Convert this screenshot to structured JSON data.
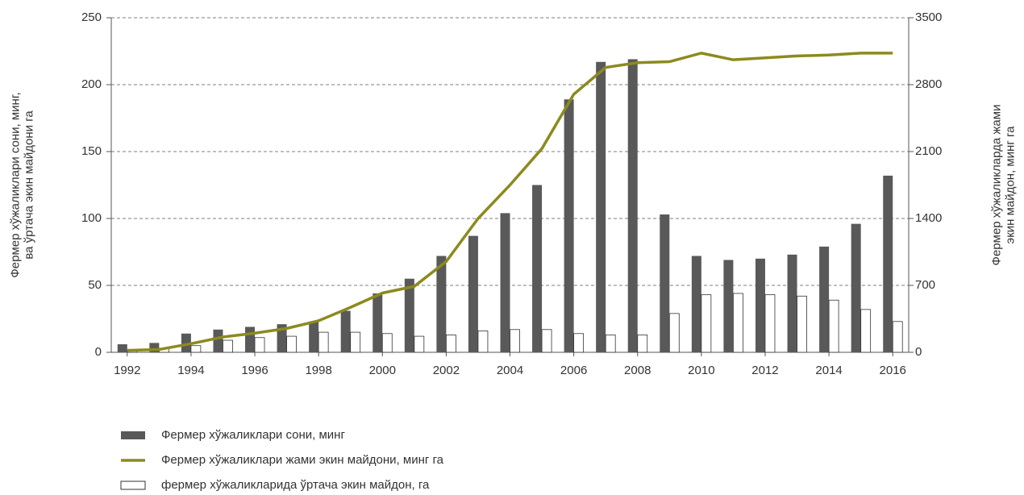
{
  "chart_data": {
    "type": "bar",
    "x": [
      1992,
      1993,
      1994,
      1995,
      1996,
      1997,
      1998,
      1999,
      2000,
      2001,
      2002,
      2003,
      2004,
      2005,
      2006,
      2007,
      2008,
      2009,
      2010,
      2011,
      2012,
      2013,
      2014,
      2015,
      2016
    ],
    "xlim": [
      1991.5,
      2016.5
    ],
    "xticks": [
      1992,
      1994,
      1996,
      1998,
      2000,
      2002,
      2004,
      2006,
      2008,
      2010,
      2012,
      2014,
      2016
    ],
    "ylim": [
      0,
      250
    ],
    "yticks": [
      0,
      50,
      100,
      150,
      200,
      250
    ],
    "y2lim": [
      0,
      3500
    ],
    "y2ticks": [
      0,
      700,
      1400,
      2100,
      2800,
      3500
    ],
    "y_label": [
      "Фермер хўжаликлари сони, минг,",
      "ва ўртача экин майдони га"
    ],
    "y2_label": [
      "Фермер хўжаликларда жами",
      "экин майдон, минг га"
    ],
    "grid": true,
    "legend": "bottom-left",
    "series": [
      {
        "name": "Фермер хўжаликлари сони, минг",
        "type": "bar",
        "color": "#595959",
        "values": [
          6,
          7,
          14,
          17,
          19,
          21,
          23,
          31,
          44,
          55,
          72,
          87,
          104,
          125,
          189,
          217,
          219,
          103,
          72,
          69,
          70,
          73,
          79,
          96,
          132
        ]
      },
      {
        "name": "Фермер хўжаликлари жами экин майдони, минг га",
        "type": "line",
        "axis": "y2",
        "color": "#8c8a1e",
        "values": [
          20,
          30,
          90,
          160,
          200,
          250,
          330,
          470,
          620,
          690,
          950,
          1400,
          1750,
          2130,
          2700,
          2980,
          3030,
          3040,
          3130,
          3060,
          3080,
          3100,
          3110,
          3130,
          3130
        ]
      },
      {
        "name": "фермер хўжаликларида ўртача экин майдон, га",
        "type": "bar",
        "color": "#ffffff",
        "values": [
          1,
          3,
          5,
          9,
          11,
          12,
          15,
          15,
          14,
          12,
          13,
          16,
          17,
          17,
          14,
          13,
          13,
          29,
          43,
          44,
          43,
          42,
          39,
          32,
          23
        ]
      }
    ]
  }
}
